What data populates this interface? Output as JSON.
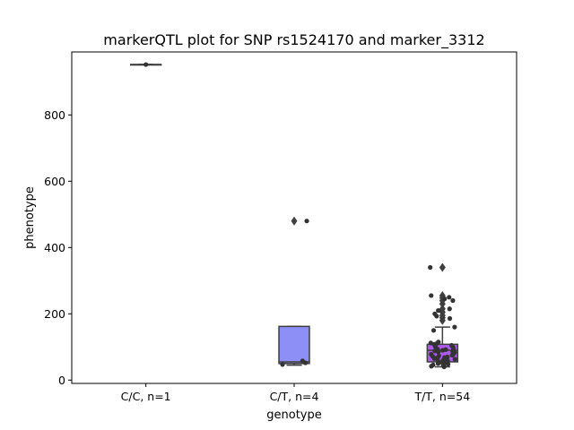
{
  "chart_data": {
    "type": "box",
    "title": "markerQTL plot for SNP rs1524170 and marker_3312",
    "xlabel": "genotype",
    "ylabel": "phenotype",
    "ylim": [
      -10,
      990
    ],
    "yticks": [
      0,
      200,
      400,
      600,
      800
    ],
    "categories": [
      "C/C, n=1",
      "C/T, n=4",
      "T/T, n=54"
    ],
    "colors": [
      "#8e8ef7",
      "#8e8ef7",
      "#b05af0"
    ],
    "boxes": [
      {
        "category": "C/C, n=1",
        "q1": 952,
        "median": 952,
        "q3": 952,
        "whisker_low": 952,
        "whisker_high": 952,
        "outliers": []
      },
      {
        "category": "C/T, n=4",
        "q1": 50,
        "median": 55,
        "q3": 162,
        "whisker_low": 45,
        "whisker_high": 162,
        "outliers": [
          480
        ]
      },
      {
        "category": "T/T, n=54",
        "q1": 55,
        "median": 90,
        "q3": 108,
        "whisker_low": 40,
        "whisker_high": 160,
        "outliers": [
          180,
          188,
          195,
          205,
          215,
          230,
          240,
          248,
          255,
          340
        ]
      }
    ],
    "points": [
      {
        "category": "C/C, n=1",
        "values": [
          952
        ]
      },
      {
        "category": "C/T, n=4",
        "values": [
          480,
          58,
          52,
          47
        ]
      },
      {
        "category": "T/T, n=54",
        "values": [
          340,
          255,
          250,
          245,
          240,
          215,
          210,
          200,
          193,
          186,
          160,
          150,
          115,
          112,
          110,
          108,
          105,
          103,
          100,
          98,
          96,
          95,
          93,
          92,
          90,
          88,
          86,
          85,
          83,
          82,
          80,
          78,
          77,
          75,
          73,
          72,
          70,
          68,
          66,
          65,
          63,
          62,
          60,
          58,
          57,
          55,
          53,
          52,
          50,
          48,
          46,
          44,
          42,
          40
        ]
      }
    ]
  }
}
